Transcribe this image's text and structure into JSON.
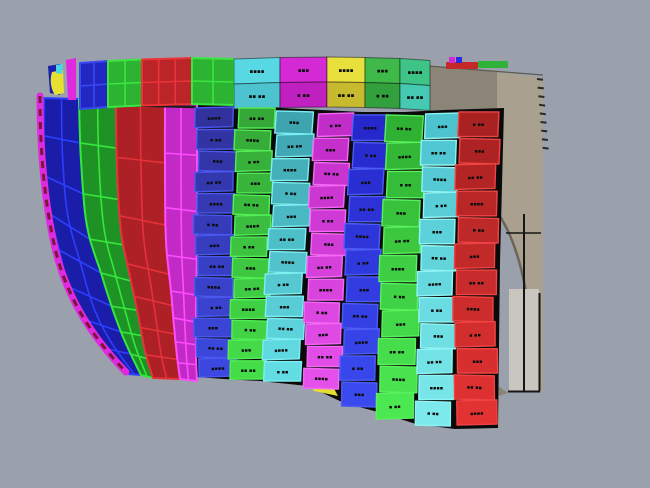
{
  "canvas": {
    "background": "#9aa1ac"
  },
  "labels": {
    "glyphs": [
      "▪▪▪▪",
      "▪▪ ▪▪",
      "▪▪▪",
      "▪ ▪▪"
    ],
    "color": "#0d0d0d"
  },
  "colors": {
    "outline_black": "#151515",
    "backing": "#0a0a0a",
    "deck_seam": "#1c1c1c",
    "stem": "#e02ae0",
    "stem_dash": "#7a1733",
    "wedge_yellow": "#e6de32",
    "bow": {
      "blue": "#191da8",
      "blue_grid": "#2e3eff",
      "green": "#1f9226",
      "green_grid": "#35e73b",
      "red": "#ac2026",
      "red_grid": "#e6303a",
      "magenta": "#c12ac5",
      "magenta_grid": "#ff4cff"
    },
    "band": {
      "blue": "#2227c4",
      "blue_grid": "#3a49f2",
      "green": "#2cb332",
      "green_grid": "#3ce542",
      "red": "#bb2428",
      "red_grid": "#ea3438"
    },
    "tip": {
      "magenta": "#e02ae0",
      "blue": "#1b1fae",
      "yellow": "#e8e030",
      "cyan": "#4ad8e0"
    },
    "stern": {
      "dark": "#8b8577",
      "tan": "#a9a090",
      "panel": "#c9c6bf",
      "arch": "#6b6557",
      "edge_line": "#5f5a4f",
      "strip_red": "#c42828",
      "strip_green": "#2fb23a",
      "dot_magenta": "#d32ad3",
      "dot_blue": "#2a2ae0"
    }
  },
  "sheer_band": {
    "rows_per_column": 2,
    "columns": [
      {
        "id": "cyan",
        "rows": [
          "#58d8e3",
          "#4cc3cf"
        ]
      },
      {
        "id": "magenta",
        "rows": [
          "#d629d6",
          "#c020c0"
        ]
      },
      {
        "id": "yellow",
        "rows": [
          "#e9e03d",
          "#c7ba2f"
        ]
      },
      {
        "id": "green",
        "rows": [
          "#3eb94a",
          "#33a03e"
        ]
      },
      {
        "id": "teal",
        "rows": [
          "#3fc487",
          "#45c9b2"
        ]
      }
    ]
  },
  "plate_columns": [
    {
      "id": "column-1",
      "plates": 13,
      "top_color": "#31329e",
      "bottom_color": "#3c48e0",
      "edge": "#4a58f0"
    },
    {
      "id": "column-2",
      "plates": 13,
      "top_color": "#35a838",
      "bottom_color": "#44dd48",
      "edge": "#52ee55"
    },
    {
      "id": "column-3",
      "plates": 12,
      "top_color": "#3da4b0",
      "bottom_color": "#63dde4",
      "edge": "#7deef2"
    },
    {
      "id": "column-4",
      "plates": 12,
      "top_color": "#c22cc8",
      "bottom_color": "#e650ea",
      "edge": "#f468f6"
    },
    {
      "id": "column-5",
      "plates": 11,
      "top_color": "#2628cc",
      "bottom_color": "#3a4aee",
      "edge": "#4c5cf4"
    },
    {
      "id": "column-6",
      "plates": 11,
      "top_color": "#2fb233",
      "bottom_color": "#4ce852",
      "edge": "#58f05c"
    },
    {
      "id": "column-7",
      "plates": 12,
      "top_color": "#4cc3cf",
      "bottom_color": "#7ceaec",
      "edge": "#90f4f4"
    },
    {
      "id": "column-8",
      "plates": 12,
      "top_color": "#a82222",
      "bottom_color": "#e23232",
      "edge": "#f04444"
    }
  ]
}
